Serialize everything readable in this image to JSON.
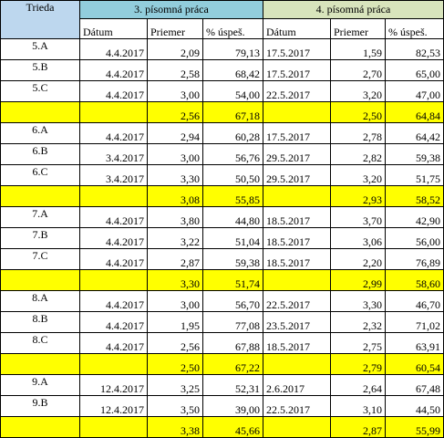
{
  "header": {
    "trieda": "Trieda",
    "group3": "3. písomná práca",
    "group4": "4. písomná práca",
    "sub3": [
      "Dátum",
      "Priemer",
      "% úspeš."
    ],
    "sub4": [
      "Dátum",
      "Priemer",
      "% úspeš."
    ]
  },
  "colors": {
    "trieda_header": "#bdd7ee",
    "group3_header": "#92cddc",
    "group4_header": "#d8e4bc",
    "summary_row": "#ffff00"
  },
  "rows": [
    {
      "type": "class",
      "cls": "5.A",
      "d3": "4.4.2017",
      "p3": "2,09",
      "u3": "79,13",
      "d4": "17.5.2017",
      "p4": "1,59",
      "u4": "82,53"
    },
    {
      "type": "class",
      "cls": "5.B",
      "d3": "4.4.2017",
      "p3": "2,58",
      "u3": "68,42",
      "d4": "17.5.2017",
      "p4": "2,70",
      "u4": "65,00"
    },
    {
      "type": "class",
      "cls": "5.C",
      "d3": "4.4.2017",
      "p3": "3,00",
      "u3": "54,00",
      "d4": "22.5.2017",
      "p4": "3,20",
      "u4": "47,00"
    },
    {
      "type": "sum",
      "p3": "2,56",
      "u3": "67,18",
      "p4": "2,50",
      "u4": "64,84"
    },
    {
      "type": "class",
      "cls": "6.A",
      "d3": "4.4.2017",
      "p3": "2,94",
      "u3": "60,28",
      "d4": "17.5.2017",
      "p4": "2,78",
      "u4": "64,42"
    },
    {
      "type": "class",
      "cls": "6.B",
      "d3": "3.4.2017",
      "p3": "3,00",
      "u3": "56,76",
      "d4": "29.5.2017",
      "p4": "2,82",
      "u4": "59,38"
    },
    {
      "type": "class",
      "cls": "6.C",
      "d3": "3.4.2017",
      "p3": "3,30",
      "u3": "50,50",
      "d4": "29.5.2017",
      "p4": "3,20",
      "u4": "51,75"
    },
    {
      "type": "sum",
      "p3": "3,08",
      "u3": "55,85",
      "p4": "2,93",
      "u4": "58,52"
    },
    {
      "type": "class",
      "cls": "7.A",
      "d3": "4.4.2017",
      "p3": "3,80",
      "u3": "44,80",
      "d4": "18.5.2017",
      "p4": "3,70",
      "u4": "42,90"
    },
    {
      "type": "class",
      "cls": "7.B",
      "d3": "4.4.2017",
      "p3": "3,22",
      "u3": "51,04",
      "d4": "18.5.2017",
      "p4": "3,06",
      "u4": "56,00"
    },
    {
      "type": "class",
      "cls": "7.C",
      "d3": "4.4.2017",
      "p3": "2,87",
      "u3": "59,38",
      "d4": "18.5.2017",
      "p4": "2,20",
      "u4": "76,89"
    },
    {
      "type": "sum",
      "p3": "3,30",
      "u3": "51,74",
      "p4": "2,99",
      "u4": "58,60"
    },
    {
      "type": "class",
      "cls": "8.A",
      "d3": "4.4.2017",
      "p3": "3,00",
      "u3": "56,70",
      "d4": "22.5.2017",
      "p4": "3,30",
      "u4": "46,70"
    },
    {
      "type": "class",
      "cls": "8.B",
      "d3": "4.4.2017",
      "p3": "1,95",
      "u3": "77,08",
      "d4": "23.5.2017",
      "p4": "2,32",
      "u4": "71,02"
    },
    {
      "type": "class",
      "cls": "8.C",
      "d3": "4.4.2017",
      "p3": "2,56",
      "u3": "67,88",
      "d4": "18.5.2017",
      "p4": "2,75",
      "u4": "63,91"
    },
    {
      "type": "sum",
      "p3": "2,50",
      "u3": "67,22",
      "p4": "2,79",
      "u4": "60,54"
    },
    {
      "type": "class",
      "cls": "9.A",
      "d3": "12.4.2017",
      "p3": "3,25",
      "u3": "52,31",
      "d4": "2.6.2017",
      "p4": "2,64",
      "u4": "67,48"
    },
    {
      "type": "class",
      "cls": "9.B",
      "d3": "12.4.2017",
      "p3": "3,50",
      "u3": "39,00",
      "d4": "22.5.2017",
      "p4": "3,10",
      "u4": "44,50"
    },
    {
      "type": "sum",
      "p3": "3,38",
      "u3": "45,66",
      "p4": "2,87",
      "u4": "55,99"
    }
  ]
}
